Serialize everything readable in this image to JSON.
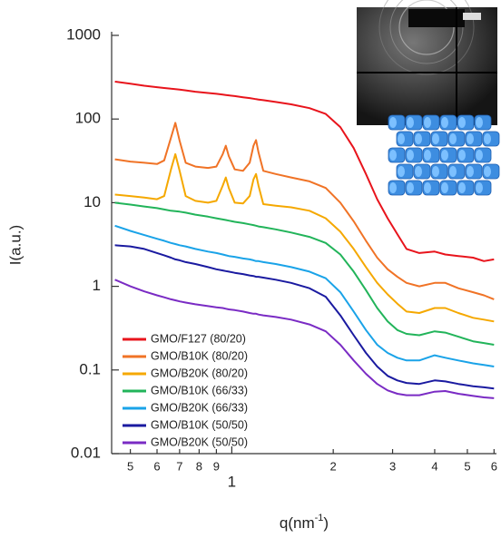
{
  "chart_data": {
    "type": "line",
    "log_x": true,
    "log_y": true,
    "xlabel": "q(nm",
    "xlabel_sup": "-1",
    "xlabel_end": ")",
    "ylabel": "I(a.u.)",
    "xlim": [
      0.44,
      6.1
    ],
    "ylim": [
      0.01,
      1000
    ],
    "xticks": [
      {
        "value": 0.5,
        "label": "5"
      },
      {
        "value": 0.6,
        "label": "6"
      },
      {
        "value": 0.7,
        "label": "7"
      },
      {
        "value": 0.8,
        "label": "8"
      },
      {
        "value": 0.9,
        "label": "9"
      },
      1,
      2,
      3,
      4,
      5,
      6
    ],
    "yticks": [
      0.01,
      0.1,
      1,
      10,
      100,
      1000
    ],
    "legend": "lower left",
    "x": [
      0.45,
      0.5,
      0.55,
      0.6,
      0.63,
      0.66,
      0.68,
      0.7,
      0.73,
      0.78,
      0.85,
      0.9,
      0.94,
      0.96,
      0.98,
      1.02,
      1.08,
      1.13,
      1.16,
      1.18,
      1.2,
      1.24,
      1.35,
      1.5,
      1.7,
      1.9,
      2.1,
      2.3,
      2.5,
      2.7,
      2.9,
      3.1,
      3.3,
      3.6,
      4.0,
      4.3,
      4.7,
      5.2,
      5.6,
      6.0
    ],
    "series": [
      {
        "name": "GMO/F127 (80/20)",
        "color": "#e8141c",
        "values": [
          280,
          265,
          250,
          240,
          235,
          230,
          228,
          225,
          220,
          212,
          205,
          200,
          196,
          194,
          192,
          188,
          182,
          178,
          175,
          173,
          171,
          168,
          160,
          150,
          135,
          115,
          80,
          45,
          22,
          11,
          6.5,
          4.2,
          2.8,
          2.5,
          2.6,
          2.4,
          2.3,
          2.2,
          2.0,
          2.1
        ]
      },
      {
        "name": "GMO/B10K (80/20)",
        "color": "#f07326",
        "values": [
          33,
          31,
          30,
          29,
          32,
          60,
          90,
          55,
          30,
          27,
          26,
          27,
          38,
          48,
          36,
          25,
          24,
          30,
          48,
          56,
          40,
          24,
          22,
          20,
          18,
          15,
          10,
          6,
          3.5,
          2.2,
          1.6,
          1.3,
          1.1,
          1.0,
          1.1,
          1.1,
          0.95,
          0.85,
          0.78,
          0.7
        ]
      },
      {
        "name": "GMO/B20K (80/20)",
        "color": "#f5a800",
        "values": [
          12.5,
          12,
          11.5,
          11,
          12,
          25,
          38,
          24,
          12,
          10.5,
          10,
          10.5,
          16,
          20,
          15,
          10,
          9.8,
          12,
          19,
          22,
          16,
          9.6,
          9.2,
          8.8,
          8,
          6.5,
          4.5,
          2.8,
          1.7,
          1.1,
          0.8,
          0.62,
          0.5,
          0.48,
          0.55,
          0.55,
          0.48,
          0.42,
          0.4,
          0.38
        ]
      },
      {
        "name": "GMO/B10K (66/33)",
        "color": "#22b45a",
        "values": [
          10,
          9.5,
          9,
          8.6,
          8.3,
          8,
          7.9,
          7.8,
          7.6,
          7.2,
          6.8,
          6.5,
          6.3,
          6.2,
          6.1,
          5.9,
          5.7,
          5.5,
          5.4,
          5.3,
          5.2,
          5.1,
          4.8,
          4.4,
          3.9,
          3.3,
          2.4,
          1.5,
          0.9,
          0.55,
          0.38,
          0.3,
          0.27,
          0.26,
          0.29,
          0.28,
          0.25,
          0.22,
          0.21,
          0.2
        ]
      },
      {
        "name": "GMO/B20K (66/33)",
        "color": "#1aa3e8",
        "values": [
          5.3,
          4.6,
          4.1,
          3.7,
          3.5,
          3.3,
          3.2,
          3.1,
          3.0,
          2.8,
          2.6,
          2.5,
          2.4,
          2.35,
          2.3,
          2.25,
          2.15,
          2.1,
          2.05,
          2.0,
          2.0,
          1.95,
          1.85,
          1.7,
          1.5,
          1.25,
          0.85,
          0.5,
          0.3,
          0.2,
          0.16,
          0.14,
          0.13,
          0.13,
          0.15,
          0.14,
          0.13,
          0.12,
          0.115,
          0.11
        ]
      },
      {
        "name": "GMO/B10K (50/50)",
        "color": "#1a1aa0",
        "values": [
          3.1,
          3.0,
          2.8,
          2.5,
          2.35,
          2.2,
          2.1,
          2.05,
          1.95,
          1.85,
          1.7,
          1.6,
          1.55,
          1.52,
          1.5,
          1.45,
          1.4,
          1.35,
          1.33,
          1.3,
          1.3,
          1.27,
          1.2,
          1.1,
          0.95,
          0.75,
          0.45,
          0.26,
          0.16,
          0.11,
          0.085,
          0.075,
          0.07,
          0.068,
          0.075,
          0.073,
          0.068,
          0.064,
          0.062,
          0.06
        ]
      },
      {
        "name": "GMO/B20K (50/50)",
        "color": "#7a2bc4",
        "values": [
          1.2,
          1.0,
          0.87,
          0.78,
          0.74,
          0.7,
          0.68,
          0.66,
          0.64,
          0.61,
          0.58,
          0.56,
          0.55,
          0.54,
          0.53,
          0.52,
          0.5,
          0.48,
          0.47,
          0.47,
          0.46,
          0.45,
          0.43,
          0.4,
          0.35,
          0.29,
          0.2,
          0.13,
          0.09,
          0.068,
          0.057,
          0.052,
          0.05,
          0.05,
          0.055,
          0.056,
          0.052,
          0.049,
          0.047,
          0.046
        ]
      }
    ]
  }
}
